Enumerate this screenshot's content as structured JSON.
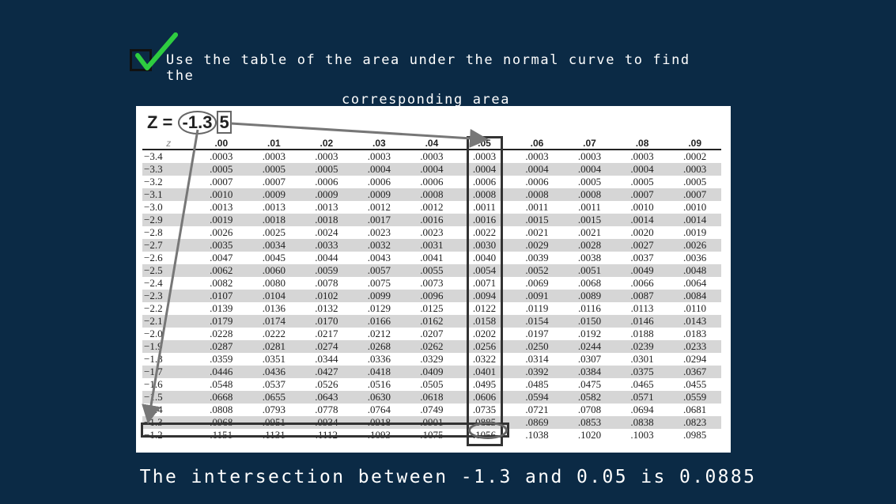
{
  "instruction": {
    "line1": "Use the table of the area under the normal curve to find the",
    "line2": "corresponding area"
  },
  "z_label": {
    "prefix": "Z =",
    "value": "-1.3",
    "digit": "5"
  },
  "table": {
    "corner_header": "z",
    "headers": [
      ".00",
      ".01",
      ".02",
      ".03",
      ".04",
      ".05",
      ".06",
      ".07",
      ".08",
      ".09"
    ],
    "rows": [
      {
        "z": "−3.4",
        "values": [
          ".0003",
          ".0003",
          ".0003",
          ".0003",
          ".0003",
          ".0003",
          ".0003",
          ".0003",
          ".0003",
          ".0002"
        ]
      },
      {
        "z": "−3.3",
        "values": [
          ".0005",
          ".0005",
          ".0005",
          ".0004",
          ".0004",
          ".0004",
          ".0004",
          ".0004",
          ".0004",
          ".0003"
        ]
      },
      {
        "z": "−3.2",
        "values": [
          ".0007",
          ".0007",
          ".0006",
          ".0006",
          ".0006",
          ".0006",
          ".0006",
          ".0005",
          ".0005",
          ".0005"
        ]
      },
      {
        "z": "−3.1",
        "values": [
          ".0010",
          ".0009",
          ".0009",
          ".0009",
          ".0008",
          ".0008",
          ".0008",
          ".0008",
          ".0007",
          ".0007"
        ]
      },
      {
        "z": "−3.0",
        "values": [
          ".0013",
          ".0013",
          ".0013",
          ".0012",
          ".0012",
          ".0011",
          ".0011",
          ".0011",
          ".0010",
          ".0010"
        ]
      },
      {
        "z": "−2.9",
        "values": [
          ".0019",
          ".0018",
          ".0018",
          ".0017",
          ".0016",
          ".0016",
          ".0015",
          ".0015",
          ".0014",
          ".0014"
        ]
      },
      {
        "z": "−2.8",
        "values": [
          ".0026",
          ".0025",
          ".0024",
          ".0023",
          ".0023",
          ".0022",
          ".0021",
          ".0021",
          ".0020",
          ".0019"
        ]
      },
      {
        "z": "−2.7",
        "values": [
          ".0035",
          ".0034",
          ".0033",
          ".0032",
          ".0031",
          ".0030",
          ".0029",
          ".0028",
          ".0027",
          ".0026"
        ]
      },
      {
        "z": "−2.6",
        "values": [
          ".0047",
          ".0045",
          ".0044",
          ".0043",
          ".0041",
          ".0040",
          ".0039",
          ".0038",
          ".0037",
          ".0036"
        ]
      },
      {
        "z": "−2.5",
        "values": [
          ".0062",
          ".0060",
          ".0059",
          ".0057",
          ".0055",
          ".0054",
          ".0052",
          ".0051",
          ".0049",
          ".0048"
        ]
      },
      {
        "z": "−2.4",
        "values": [
          ".0082",
          ".0080",
          ".0078",
          ".0075",
          ".0073",
          ".0071",
          ".0069",
          ".0068",
          ".0066",
          ".0064"
        ]
      },
      {
        "z": "−2.3",
        "values": [
          ".0107",
          ".0104",
          ".0102",
          ".0099",
          ".0096",
          ".0094",
          ".0091",
          ".0089",
          ".0087",
          ".0084"
        ]
      },
      {
        "z": "−2.2",
        "values": [
          ".0139",
          ".0136",
          ".0132",
          ".0129",
          ".0125",
          ".0122",
          ".0119",
          ".0116",
          ".0113",
          ".0110"
        ]
      },
      {
        "z": "−2.1",
        "values": [
          ".0179",
          ".0174",
          ".0170",
          ".0166",
          ".0162",
          ".0158",
          ".0154",
          ".0150",
          ".0146",
          ".0143"
        ]
      },
      {
        "z": "−2.0",
        "values": [
          ".0228",
          ".0222",
          ".0217",
          ".0212",
          ".0207",
          ".0202",
          ".0197",
          ".0192",
          ".0188",
          ".0183"
        ]
      },
      {
        "z": "−1.9",
        "values": [
          ".0287",
          ".0281",
          ".0274",
          ".0268",
          ".0262",
          ".0256",
          ".0250",
          ".0244",
          ".0239",
          ".0233"
        ]
      },
      {
        "z": "−1.8",
        "values": [
          ".0359",
          ".0351",
          ".0344",
          ".0336",
          ".0329",
          ".0322",
          ".0314",
          ".0307",
          ".0301",
          ".0294"
        ]
      },
      {
        "z": "−1.7",
        "values": [
          ".0446",
          ".0436",
          ".0427",
          ".0418",
          ".0409",
          ".0401",
          ".0392",
          ".0384",
          ".0375",
          ".0367"
        ]
      },
      {
        "z": "−1.6",
        "values": [
          ".0548",
          ".0537",
          ".0526",
          ".0516",
          ".0505",
          ".0495",
          ".0485",
          ".0475",
          ".0465",
          ".0455"
        ]
      },
      {
        "z": "−1.5",
        "values": [
          ".0668",
          ".0655",
          ".0643",
          ".0630",
          ".0618",
          ".0606",
          ".0594",
          ".0582",
          ".0571",
          ".0559"
        ]
      },
      {
        "z": "−1.4",
        "values": [
          ".0808",
          ".0793",
          ".0778",
          ".0764",
          ".0749",
          ".0735",
          ".0721",
          ".0708",
          ".0694",
          ".0681"
        ]
      },
      {
        "z": "−1.3",
        "values": [
          ".0968",
          ".0951",
          ".0934",
          ".0918",
          ".0901",
          ".0885",
          ".0869",
          ".0853",
          ".0838",
          ".0823"
        ]
      },
      {
        "z": "−1.2",
        "values": [
          ".1151",
          ".1131",
          ".1112",
          ".1093",
          ".1075",
          ".1056",
          ".1038",
          ".1020",
          ".1003",
          ".0985"
        ]
      }
    ]
  },
  "highlight": {
    "row_z": "−1.3",
    "column": ".05",
    "value": ".0885"
  },
  "caption": "The intersection between -1.3 and 0.05 is 0.0885",
  "colors": {
    "background": "#0b2a45",
    "check": "#2ecc40",
    "row_shade": "#d6d6d6"
  }
}
